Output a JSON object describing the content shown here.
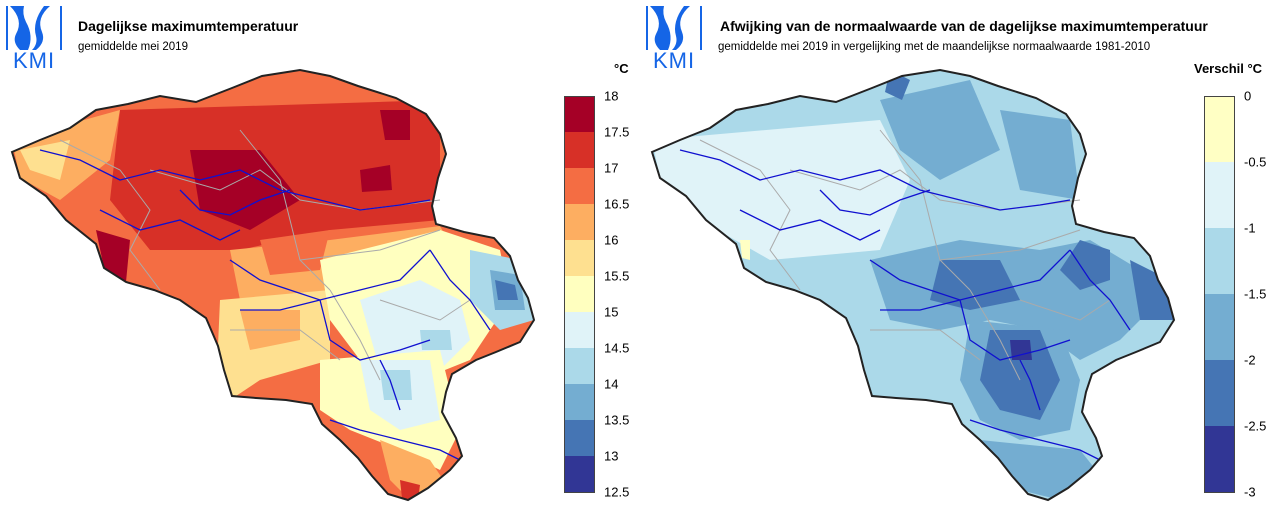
{
  "logo": {
    "text": "KMI",
    "color": "#1565e6"
  },
  "left_map": {
    "title": "Dagelijkse maximumtemperatuur",
    "subtitle": "gemiddelde mei 2019",
    "unit": "°C",
    "legend": {
      "ticks": [
        "18",
        "17.5",
        "17",
        "16.5",
        "16",
        "15.5",
        "15",
        "14.5",
        "14",
        "13.5",
        "13",
        "12.5"
      ],
      "colors": [
        "#a50026",
        "#d73027",
        "#f46d43",
        "#fdae61",
        "#fee090",
        "#ffffbf",
        "#e0f3f8",
        "#abd9e9",
        "#74add1",
        "#4575b4",
        "#313695"
      ]
    }
  },
  "right_map": {
    "title": "Afwijking van de normaalwaarde van de dagelijkse maximumtemperatuur",
    "subtitle": "gemiddelde mei 2019 in vergelijking met de maandelijkse normaalwaarde 1981-2010",
    "unit": "Verschil °C",
    "legend": {
      "ticks": [
        "0",
        "-0.5",
        "-1",
        "-1.5",
        "-2",
        "-2.5",
        "-3"
      ],
      "colors": [
        "#ffffc4",
        "#e0f3f8",
        "#abd9e9",
        "#74add1",
        "#4575b4",
        "#313695"
      ]
    }
  }
}
